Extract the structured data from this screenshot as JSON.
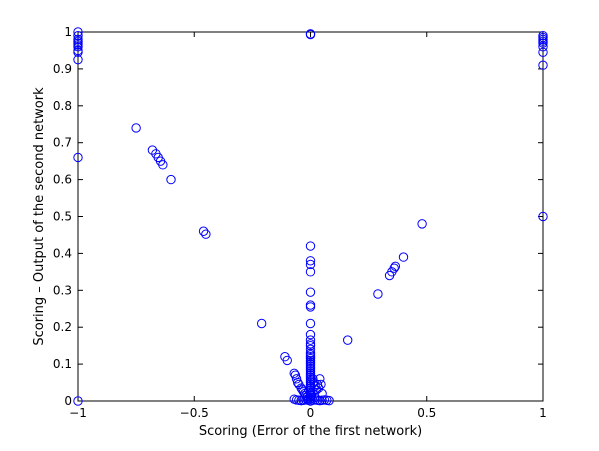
{
  "chart_data": {
    "type": "scatter",
    "title": "",
    "xlabel": "Scoring (Error of the first network)",
    "ylabel": "Scoring – Output of the second network",
    "xlim": [
      -1,
      1
    ],
    "ylim": [
      0,
      1
    ],
    "x_ticks": [
      -1,
      -0.5,
      0,
      0.5,
      1
    ],
    "x_tick_labels": [
      "−1",
      "−0.5",
      "0",
      "0.5",
      "1"
    ],
    "y_ticks": [
      0,
      0.1,
      0.2,
      0.3,
      0.4,
      0.5,
      0.6,
      0.7,
      0.8,
      0.9,
      1
    ],
    "y_tick_labels": [
      "0",
      "0.1",
      "0.2",
      "0.3",
      "0.4",
      "0.5",
      "0.6",
      "0.7",
      "0.8",
      "0.9",
      "1"
    ],
    "grid": false,
    "marker": "open-circle",
    "marker_color": "#0000ff",
    "series": [
      {
        "points": [
          [
            -1,
            1.0
          ],
          [
            -1,
            0.99
          ],
          [
            -1,
            0.98
          ],
          [
            -1,
            0.975
          ],
          [
            -1,
            0.97
          ],
          [
            -1,
            0.965
          ],
          [
            -1,
            0.96
          ],
          [
            -1,
            0.95
          ],
          [
            -1,
            0.945
          ],
          [
            -1,
            0.925
          ],
          [
            -1,
            0.66
          ],
          [
            -1,
            0.0
          ],
          [
            0,
            0.995
          ],
          [
            0,
            0.993
          ],
          [
            1,
            0.99
          ],
          [
            1,
            0.985
          ],
          [
            1,
            0.98
          ],
          [
            1,
            0.975
          ],
          [
            1,
            0.97
          ],
          [
            1,
            0.96
          ],
          [
            1,
            0.945
          ],
          [
            1,
            0.91
          ],
          [
            1,
            0.5
          ],
          [
            -0.75,
            0.74
          ],
          [
            -0.68,
            0.68
          ],
          [
            -0.665,
            0.67
          ],
          [
            -0.655,
            0.66
          ],
          [
            -0.645,
            0.65
          ],
          [
            -0.635,
            0.64
          ],
          [
            -0.6,
            0.6
          ],
          [
            -0.46,
            0.46
          ],
          [
            -0.45,
            0.452
          ],
          [
            -0.21,
            0.21
          ],
          [
            -0.11,
            0.12
          ],
          [
            -0.1,
            0.11
          ],
          [
            -0.07,
            0.075
          ],
          [
            -0.065,
            0.07
          ],
          [
            -0.06,
            0.06
          ],
          [
            -0.055,
            0.05
          ],
          [
            -0.05,
            0.045
          ],
          [
            -0.04,
            0.035
          ],
          [
            -0.035,
            0.03
          ],
          [
            -0.03,
            0.025
          ],
          [
            -0.025,
            0.02
          ],
          [
            -0.02,
            0.015
          ],
          [
            -0.015,
            0.01
          ],
          [
            -0.01,
            0.005
          ],
          [
            -0.07,
            0.005
          ],
          [
            -0.06,
            0.003
          ],
          [
            -0.05,
            0.002
          ],
          [
            -0.04,
            0.001
          ],
          [
            -0.03,
            0.002
          ],
          [
            -0.02,
            0.003
          ],
          [
            -0.01,
            0.002
          ],
          [
            0.01,
            0.002
          ],
          [
            0.02,
            0.003
          ],
          [
            0.03,
            0.002
          ],
          [
            0.04,
            0.001
          ],
          [
            0.05,
            0.002
          ],
          [
            0.06,
            0.003
          ],
          [
            0.07,
            0.002
          ],
          [
            0.08,
            0.001
          ],
          [
            0,
            0.42
          ],
          [
            0,
            0.38
          ],
          [
            0,
            0.37
          ],
          [
            0,
            0.35
          ],
          [
            0,
            0.295
          ],
          [
            0,
            0.26
          ],
          [
            0,
            0.255
          ],
          [
            0,
            0.21
          ],
          [
            0,
            0.18
          ],
          [
            0,
            0.165
          ],
          [
            0,
            0.155
          ],
          [
            0,
            0.15
          ],
          [
            0,
            0.14
          ],
          [
            0,
            0.13
          ],
          [
            0,
            0.125
          ],
          [
            0,
            0.12
          ],
          [
            0,
            0.115
          ],
          [
            0,
            0.11
          ],
          [
            0,
            0.105
          ],
          [
            0,
            0.1
          ],
          [
            0,
            0.095
          ],
          [
            0,
            0.09
          ],
          [
            0,
            0.085
          ],
          [
            0,
            0.08
          ],
          [
            0,
            0.075
          ],
          [
            0,
            0.07
          ],
          [
            0,
            0.065
          ],
          [
            0,
            0.06
          ],
          [
            0,
            0.055
          ],
          [
            0,
            0.05
          ],
          [
            0,
            0.045
          ],
          [
            0,
            0.04
          ],
          [
            0,
            0.035
          ],
          [
            0,
            0.03
          ],
          [
            0,
            0.025
          ],
          [
            0,
            0.02
          ],
          [
            0,
            0.015
          ],
          [
            0,
            0.01
          ],
          [
            0,
            0.005
          ],
          [
            0,
            0.0
          ],
          [
            0.01,
            0.06
          ],
          [
            0.015,
            0.05
          ],
          [
            0.02,
            0.04
          ],
          [
            0.025,
            0.03
          ],
          [
            0.03,
            0.045
          ],
          [
            0.035,
            0.035
          ],
          [
            0.04,
            0.06
          ],
          [
            0.045,
            0.045
          ],
          [
            0.05,
            0.02
          ],
          [
            0.01,
            0.025
          ],
          [
            0.005,
            0.015
          ],
          [
            0.02,
            0.01
          ],
          [
            0.16,
            0.165
          ],
          [
            0.29,
            0.29
          ],
          [
            0.34,
            0.34
          ],
          [
            0.35,
            0.35
          ],
          [
            0.36,
            0.36
          ],
          [
            0.365,
            0.365
          ],
          [
            0.4,
            0.39
          ],
          [
            0.48,
            0.48
          ]
        ]
      }
    ]
  }
}
